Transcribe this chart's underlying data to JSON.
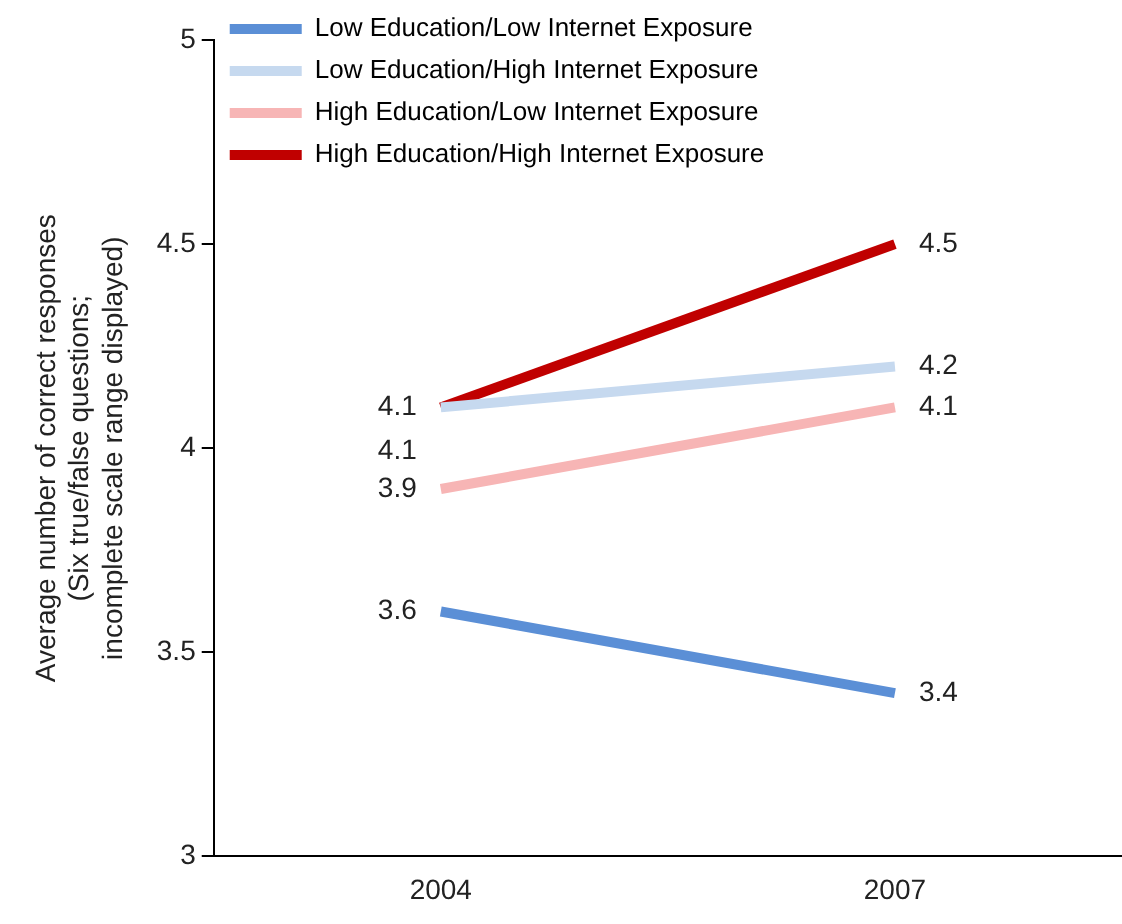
{
  "chart_data": {
    "type": "line",
    "ylabel": "Average number of correct responses\n(Six true/false questions;\nincomplete scale range displayed)",
    "categories": [
      "2004",
      "2007"
    ],
    "series": [
      {
        "name": "Low Education/Low Internet Exposure",
        "color": "#5b8fd6",
        "values": [
          3.6,
          3.4
        ]
      },
      {
        "name": "Low Education/High Internet Exposure",
        "color": "#c6d9ef",
        "values": [
          4.1,
          4.2
        ]
      },
      {
        "name": "High Education/Low Internet Exposure",
        "color": "#f7b5b5",
        "values": [
          3.9,
          4.1
        ]
      },
      {
        "name": "High Education/High Internet Exposure",
        "color": "#c00000",
        "values": [
          4.1,
          4.5
        ]
      }
    ],
    "ylim": [
      3,
      5
    ],
    "yticks": [
      3,
      3.5,
      4,
      4.5,
      5
    ],
    "grid": false,
    "legend": "top left",
    "marker": "none",
    "line_style": "solid",
    "data_labels": true
  }
}
